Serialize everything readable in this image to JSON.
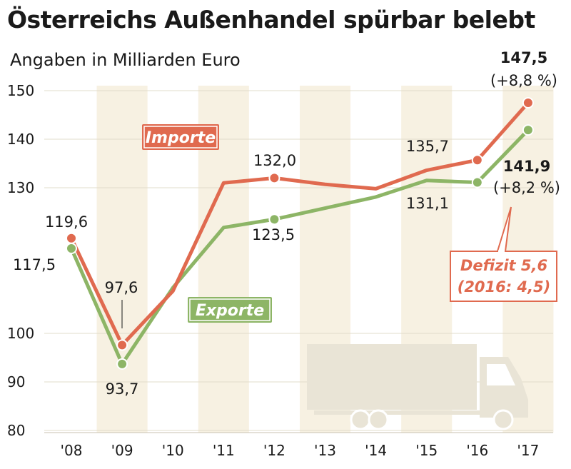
{
  "title": "Österreichs Außenhandel spürbar belebt",
  "subtitle": "Angaben in Milliarden Euro",
  "colors": {
    "importe": "#e06a4f",
    "exporte": "#8db566",
    "band": "#f7f1e2",
    "truck": "#e9e4d6"
  },
  "chart_data": {
    "type": "line",
    "categories": [
      "'08",
      "'09",
      "'10",
      "'11",
      "'12",
      "'13",
      "'14",
      "'15",
      "'16",
      "'17"
    ],
    "yticks": [
      80,
      90,
      100,
      130,
      140,
      150
    ],
    "series": [
      {
        "name": "Importe",
        "values": [
          119.6,
          97.6,
          108.7,
          131.0,
          132.0,
          130.7,
          129.8,
          133.6,
          135.7,
          147.5
        ]
      },
      {
        "name": "Exporte",
        "values": [
          117.5,
          93.7,
          109.4,
          121.8,
          123.5,
          125.8,
          128.1,
          131.5,
          131.1,
          141.9
        ]
      }
    ],
    "labels": {
      "imp_08": "119,6",
      "imp_09": "97,6",
      "imp_12": "132,0",
      "imp_16": "135,7",
      "imp_17": "147,5",
      "imp_17_change": "(+8,8 %)",
      "exp_08": "117,5",
      "exp_09": "93,7",
      "exp_12": "123,5",
      "exp_16": "131,1",
      "exp_17": "141,9",
      "exp_17_change": "(+8,2 %)"
    },
    "deficit_line1": "Defizit 5,6",
    "deficit_line2": "(2016: 4,5)"
  }
}
